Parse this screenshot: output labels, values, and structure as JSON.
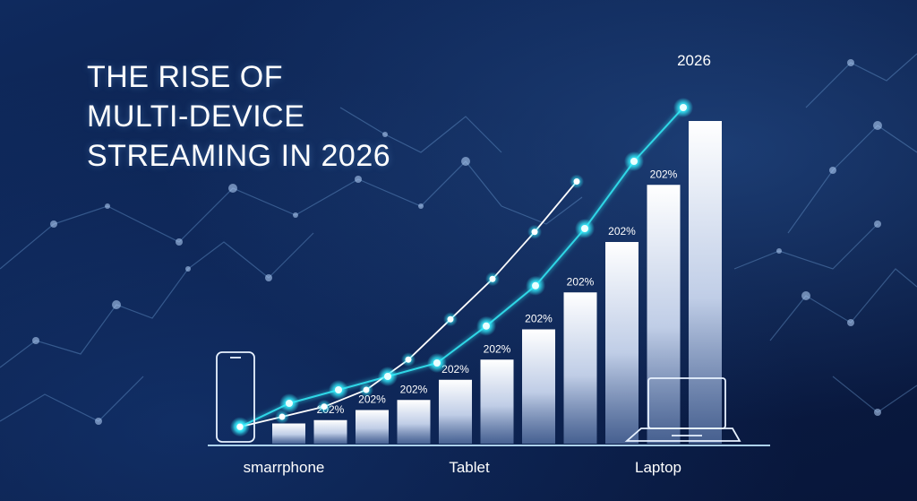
{
  "title_lines": [
    "THE RISE OF",
    "MULTI-DEVICE",
    "STREAMING IN 2026"
  ],
  "colors": {
    "background": "#0b1e48",
    "bar_top": "#ffffff",
    "bar_bottom": "#8aa4cf",
    "line_primary": "#2fd6e6",
    "line_secondary": "#ffffff",
    "node_glow": "#35f0ff"
  },
  "chart_data": {
    "type": "bar",
    "title": "THE RISE OF MULTI-DEVICE STREAMING IN 2026",
    "xlabel": "",
    "ylabel": "",
    "ylim": [
      0,
      100
    ],
    "grid": false,
    "legend": "none",
    "values": [
      6,
      7,
      10,
      13,
      19,
      25,
      34,
      45,
      60,
      77,
      96
    ],
    "data_labels": [
      "",
      "202%",
      "202%",
      "202%",
      "202%",
      "202%",
      "202%",
      "202%",
      "202%",
      "202%",
      ""
    ],
    "category_labels": [
      {
        "text": "smarrphone",
        "at_bar": 1
      },
      {
        "text": "Tablet",
        "at_bar": 5
      },
      {
        "text": "Laptop",
        "at_bar": 9
      }
    ],
    "year_label": "2026",
    "lines": [
      {
        "style": "cyan-glow",
        "values": [
          5,
          12,
          16,
          20,
          24,
          35,
          47,
          64,
          84,
          100
        ]
      },
      {
        "style": "white",
        "values": [
          5,
          8,
          11,
          16,
          25,
          37,
          49,
          63,
          78
        ]
      }
    ],
    "device_icons": [
      "smartphone-icon",
      "laptop-icon"
    ]
  }
}
